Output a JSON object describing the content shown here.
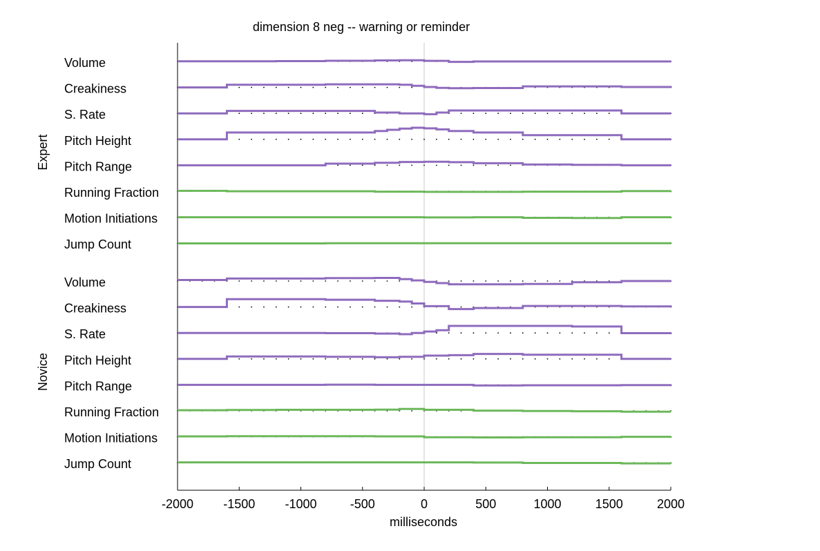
{
  "chart_data": {
    "type": "line",
    "title": "dimension 8 neg -- warning or reminder",
    "xlabel": "milliseconds",
    "xlim": [
      -2000,
      2000
    ],
    "xticks": [
      -2000,
      -1500,
      -1000,
      -500,
      0,
      500,
      1000,
      1500,
      2000
    ],
    "zero_line_x": 0,
    "colors": {
      "prosodic": "#8e6bbd",
      "motion": "#6cb85a",
      "baseline_dots": "#000000",
      "zero_line": "#c8c8c8"
    },
    "groups": [
      {
        "name": "Expert",
        "rows": [
          {
            "label": "Volume",
            "kind": "prosodic",
            "x": [
              -2000,
              -1600,
              -1200,
              -800,
              -400,
              -200,
              0,
              200,
              400,
              800,
              1200,
              1600,
              2000
            ],
            "y": [
              0.1,
              0.1,
              0.15,
              0.35,
              0.5,
              0.6,
              0.3,
              -0.2,
              0,
              0,
              0,
              0,
              0
            ]
          },
          {
            "label": "Creakiness",
            "kind": "prosodic",
            "x": [
              -2000,
              -1600,
              -800,
              -200,
              -100,
              0,
              100,
              200,
              400,
              800,
              1200,
              1600,
              2000
            ],
            "y": [
              0,
              1.3,
              1.5,
              1.3,
              0.8,
              0.2,
              -0.2,
              -0.4,
              -0.3,
              0.5,
              0.5,
              0.2,
              0
            ]
          },
          {
            "label": "S. Rate",
            "kind": "prosodic",
            "x": [
              -2000,
              -1600,
              -800,
              -400,
              -200,
              0,
              100,
              200,
              400,
              800,
              1200,
              1600,
              2000
            ],
            "y": [
              0,
              1.2,
              1.2,
              0.4,
              0,
              -0.4,
              0.4,
              1.4,
              1.4,
              1.4,
              1.4,
              0,
              0
            ]
          },
          {
            "label": "Pitch Height",
            "kind": "prosodic",
            "x": [
              -2000,
              -1600,
              -800,
              -400,
              -300,
              -200,
              -100,
              0,
              100,
              200,
              400,
              800,
              1600,
              2000
            ],
            "y": [
              0,
              3.3,
              3.3,
              4,
              4.6,
              5.2,
              5.6,
              5.3,
              4.8,
              4,
              3.3,
              2,
              0,
              0
            ]
          },
          {
            "label": "Pitch Range",
            "kind": "prosodic",
            "x": [
              -2000,
              -800,
              -400,
              -200,
              0,
              200,
              400,
              800,
              1200,
              1600,
              2000
            ],
            "y": [
              0,
              0.8,
              1.2,
              1.6,
              1.7,
              1.5,
              1,
              0.4,
              0.2,
              0,
              0
            ]
          },
          {
            "label": "Running Fraction",
            "kind": "motion",
            "x": [
              -2000,
              -1600,
              -400,
              0,
              400,
              800,
              1600,
              2000
            ],
            "y": [
              0.2,
              0,
              -0.2,
              -0.3,
              -0.3,
              -0.2,
              0.1,
              0.2
            ]
          },
          {
            "label": "Motion Initiations",
            "kind": "motion",
            "x": [
              -2000,
              -1600,
              -800,
              -400,
              0,
              400,
              800,
              1200,
              1600,
              2000
            ],
            "y": [
              0,
              0,
              0,
              0,
              -0.1,
              0,
              -0.3,
              -0.4,
              0,
              0.1
            ]
          },
          {
            "label": "Jump Count",
            "kind": "motion",
            "x": [
              -2000,
              -800,
              -400,
              0,
              400,
              800,
              1600,
              2000
            ],
            "y": [
              -0.1,
              0,
              0,
              0,
              0,
              0,
              0,
              0
            ]
          }
        ]
      },
      {
        "name": "Novice",
        "rows": [
          {
            "label": "Volume",
            "kind": "prosodic",
            "x": [
              -2000,
              -1600,
              -800,
              -400,
              -200,
              -100,
              0,
              100,
              200,
              400,
              800,
              1200,
              1600,
              2000
            ],
            "y": [
              0.5,
              1.2,
              1.4,
              1.5,
              0.9,
              0.3,
              -0.4,
              -1,
              -1.6,
              -1.6,
              -1.4,
              -0.6,
              0,
              0
            ]
          },
          {
            "label": "Creakiness",
            "kind": "prosodic",
            "x": [
              -2000,
              -1600,
              -800,
              -400,
              -200,
              -100,
              0,
              200,
              400,
              800,
              1200,
              1600,
              2000
            ],
            "y": [
              0,
              3.8,
              3.5,
              3,
              2.6,
              1.7,
              0.4,
              -1,
              -0.5,
              0.5,
              0.5,
              0.3,
              0
            ]
          },
          {
            "label": "S. Rate",
            "kind": "prosodic",
            "x": [
              -2000,
              -1600,
              -800,
              -400,
              -200,
              -100,
              0,
              100,
              200,
              400,
              800,
              1200,
              1600,
              2000
            ],
            "y": [
              0,
              0,
              -0.1,
              -0.3,
              -0.6,
              0,
              0.7,
              1.3,
              3.4,
              3.4,
              3.4,
              3.1,
              -0.1,
              0
            ]
          },
          {
            "label": "Pitch Height",
            "kind": "prosodic",
            "x": [
              -2000,
              -1600,
              -800,
              -400,
              -200,
              0,
              200,
              400,
              800,
              1200,
              1600,
              2000
            ],
            "y": [
              0,
              1.2,
              1,
              0.8,
              1,
              1.6,
              1.8,
              2.4,
              2,
              2,
              0,
              0
            ]
          },
          {
            "label": "Pitch Range",
            "kind": "prosodic",
            "x": [
              -2000,
              -1600,
              -800,
              -400,
              0,
              400,
              800,
              1200,
              1600,
              2000
            ],
            "y": [
              0,
              0,
              0.1,
              0,
              0,
              -0.3,
              -0.2,
              -0.2,
              -0.1,
              0
            ]
          },
          {
            "label": "Running Fraction",
            "kind": "motion",
            "x": [
              -2000,
              -1600,
              -1200,
              -800,
              -400,
              -200,
              0,
              400,
              800,
              1200,
              1600,
              2000
            ],
            "y": [
              0.3,
              0.4,
              0.5,
              0.5,
              0.6,
              0.9,
              0.5,
              0.1,
              -0.1,
              -0.2,
              -0.4,
              -0.4
            ]
          },
          {
            "label": "Motion Initiations",
            "kind": "motion",
            "x": [
              -2000,
              -1600,
              -400,
              0,
              400,
              800,
              1600,
              2000
            ],
            "y": [
              0.2,
              0.3,
              0.2,
              -0.2,
              -0.3,
              -0.2,
              0,
              0.1
            ]
          },
          {
            "label": "Jump Count",
            "kind": "motion",
            "x": [
              -2000,
              -1600,
              -400,
              0,
              400,
              800,
              1600,
              2000
            ],
            "y": [
              0.2,
              0.2,
              0.2,
              0.2,
              0.1,
              -0.1,
              -0.3,
              -0.5
            ]
          }
        ]
      }
    ]
  }
}
